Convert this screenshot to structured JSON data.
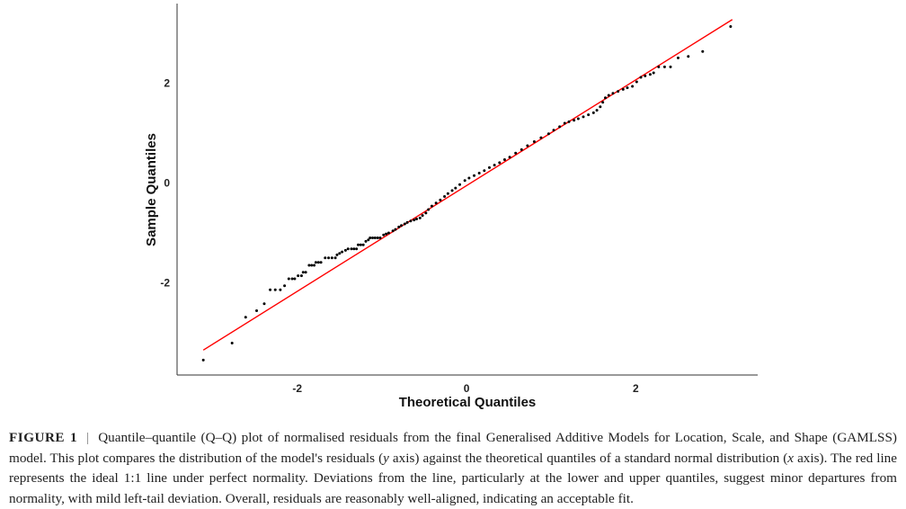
{
  "chart_data": {
    "type": "scatter",
    "title": "",
    "xlabel": "Theoretical Quantiles",
    "ylabel": "Sample Quantiles",
    "xlim": [
      -3.42,
      3.44
    ],
    "ylim": [
      -3.85,
      3.6
    ],
    "xticks": [
      -2,
      0,
      2
    ],
    "xtick_labels": [
      "-2",
      "0",
      "2"
    ],
    "yticks": [
      -2,
      0,
      2
    ],
    "ytick_labels": [
      "-2",
      "0",
      "2"
    ],
    "grid": false,
    "colors": {
      "points": "#000000",
      "reference_line": "#ff0000"
    },
    "reference_line": {
      "x": [
        -3.11,
        3.14
      ],
      "y": [
        -3.35,
        3.28
      ]
    },
    "points": [
      [
        -3.11,
        -3.55
      ],
      [
        -2.77,
        -3.21
      ],
      [
        -2.61,
        -2.69
      ],
      [
        -2.48,
        -2.56
      ],
      [
        -2.39,
        -2.42
      ],
      [
        -2.32,
        -2.14
      ],
      [
        -2.26,
        -2.14
      ],
      [
        -2.2,
        -2.14
      ],
      [
        -2.15,
        -2.06
      ],
      [
        -2.1,
        -1.92
      ],
      [
        -2.06,
        -1.92
      ],
      [
        -2.03,
        -1.92
      ],
      [
        -1.99,
        -1.86
      ],
      [
        -1.95,
        -1.86
      ],
      [
        -1.93,
        -1.79
      ],
      [
        -1.9,
        -1.79
      ],
      [
        -1.86,
        -1.65
      ],
      [
        -1.83,
        -1.65
      ],
      [
        -1.8,
        -1.65
      ],
      [
        -1.78,
        -1.59
      ],
      [
        -1.75,
        -1.59
      ],
      [
        -1.72,
        -1.59
      ],
      [
        -1.67,
        -1.5
      ],
      [
        -1.63,
        -1.5
      ],
      [
        -1.59,
        -1.5
      ],
      [
        -1.55,
        -1.5
      ],
      [
        -1.53,
        -1.44
      ],
      [
        -1.5,
        -1.41
      ],
      [
        -1.47,
        -1.38
      ],
      [
        -1.43,
        -1.35
      ],
      [
        -1.4,
        -1.32
      ],
      [
        -1.36,
        -1.32
      ],
      [
        -1.33,
        -1.32
      ],
      [
        -1.3,
        -1.32
      ],
      [
        -1.28,
        -1.24
      ],
      [
        -1.25,
        -1.24
      ],
      [
        -1.22,
        -1.24
      ],
      [
        -1.19,
        -1.17
      ],
      [
        -1.16,
        -1.14
      ],
      [
        -1.14,
        -1.1
      ],
      [
        -1.11,
        -1.1
      ],
      [
        -1.08,
        -1.1
      ],
      [
        -1.05,
        -1.1
      ],
      [
        -1.02,
        -1.1
      ],
      [
        -0.98,
        -1.04
      ],
      [
        -0.95,
        -1.02
      ],
      [
        -0.92,
        -1.0
      ],
      [
        -0.87,
        -0.96
      ],
      [
        -0.84,
        -0.93
      ],
      [
        -0.8,
        -0.88
      ],
      [
        -0.77,
        -0.85
      ],
      [
        -0.73,
        -0.82
      ],
      [
        -0.7,
        -0.79
      ],
      [
        -0.66,
        -0.76
      ],
      [
        -0.62,
        -0.74
      ],
      [
        -0.59,
        -0.72
      ],
      [
        -0.55,
        -0.7
      ],
      [
        -0.52,
        -0.65
      ],
      [
        -0.48,
        -0.6
      ],
      [
        -0.45,
        -0.53
      ],
      [
        -0.41,
        -0.46
      ],
      [
        -0.36,
        -0.4
      ],
      [
        -0.31,
        -0.34
      ],
      [
        -0.26,
        -0.27
      ],
      [
        -0.22,
        -0.21
      ],
      [
        -0.17,
        -0.15
      ],
      [
        -0.13,
        -0.1
      ],
      [
        -0.08,
        -0.03
      ],
      [
        -0.02,
        0.05
      ],
      [
        0.03,
        0.1
      ],
      [
        0.09,
        0.15
      ],
      [
        0.15,
        0.2
      ],
      [
        0.21,
        0.25
      ],
      [
        0.27,
        0.31
      ],
      [
        0.33,
        0.36
      ],
      [
        0.39,
        0.41
      ],
      [
        0.45,
        0.47
      ],
      [
        0.51,
        0.52
      ],
      [
        0.58,
        0.6
      ],
      [
        0.65,
        0.67
      ],
      [
        0.72,
        0.75
      ],
      [
        0.8,
        0.83
      ],
      [
        0.88,
        0.91
      ],
      [
        0.97,
        0.99
      ],
      [
        1.03,
        1.06
      ],
      [
        1.1,
        1.13
      ],
      [
        1.16,
        1.2
      ],
      [
        1.21,
        1.23
      ],
      [
        1.27,
        1.26
      ],
      [
        1.32,
        1.29
      ],
      [
        1.38,
        1.33
      ],
      [
        1.44,
        1.37
      ],
      [
        1.5,
        1.41
      ],
      [
        1.54,
        1.46
      ],
      [
        1.58,
        1.53
      ],
      [
        1.61,
        1.62
      ],
      [
        1.64,
        1.71
      ],
      [
        1.68,
        1.76
      ],
      [
        1.73,
        1.8
      ],
      [
        1.79,
        1.84
      ],
      [
        1.85,
        1.88
      ],
      [
        1.9,
        1.91
      ],
      [
        1.96,
        1.94
      ],
      [
        2.01,
        2.03
      ],
      [
        2.06,
        2.12
      ],
      [
        2.11,
        2.15
      ],
      [
        2.17,
        2.18
      ],
      [
        2.21,
        2.21
      ],
      [
        2.27,
        2.33
      ],
      [
        2.34,
        2.33
      ],
      [
        2.41,
        2.33
      ],
      [
        2.5,
        2.51
      ],
      [
        2.62,
        2.54
      ],
      [
        2.79,
        2.64
      ],
      [
        3.12,
        3.14
      ]
    ]
  },
  "caption": {
    "label": "FIGURE 1",
    "separator": "|",
    "part1": "Quantile–quantile (Q–Q) plot of normalised residuals from the final Generalised Additive Models for Location, Scale, and Shape (GAMLSS) model. This plot compares the distribution of the model's residuals (",
    "y_italic": "y",
    "part2": " axis) against the theoretical quantiles of a standard normal distribution (",
    "x_italic": "x",
    "part3": " axis). The red line represents the ideal 1:1 line under perfect normality. Deviations from the line, particularly at the lower and upper quantiles, suggest minor departures from normality, with mild left-tail deviation. Overall, residuals are reasonably well-aligned, indicating an acceptable fit."
  }
}
